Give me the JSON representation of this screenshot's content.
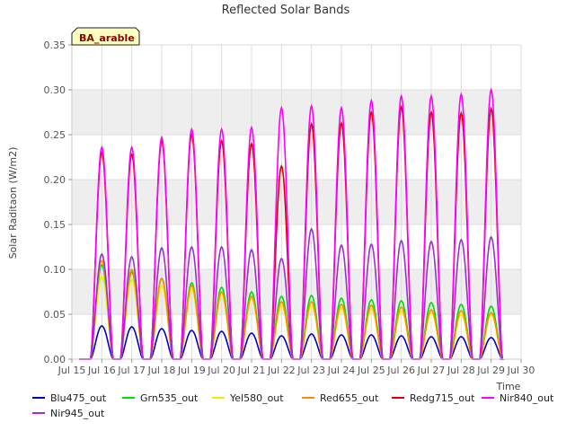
{
  "chart_data": {
    "type": "line",
    "title": "Reflected Solar Bands",
    "site_badge": "BA_arable",
    "xlabel": "Time",
    "ylabel": "Solar Raditaon (W/m2)",
    "ylim": [
      0,
      0.35
    ],
    "y_ticks": [
      "0.00",
      "0.05",
      "0.10",
      "0.15",
      "0.20",
      "0.25",
      "0.30",
      "0.35"
    ],
    "xlim": [
      15,
      30
    ],
    "x_ticks": [
      "Jul 15",
      "Jul 16",
      "Jul 17",
      "Jul 18",
      "Jul 19",
      "Jul 20",
      "Jul 21",
      "Jul 22",
      "Jul 23",
      "Jul 24",
      "Jul 25",
      "Jul 26",
      "Jul 27",
      "Jul 28",
      "Jul 29",
      "Jul 30"
    ],
    "grid": true,
    "legend_position": "bottom",
    "day_numbers": [
      16,
      17,
      18,
      19,
      20,
      21,
      22,
      23,
      24,
      25,
      26,
      27,
      28,
      29
    ],
    "series": [
      {
        "name": "Blu475_out",
        "color": "#0000cc",
        "daily_peak": [
          0.037,
          0.036,
          0.034,
          0.032,
          0.031,
          0.029,
          0.026,
          0.028,
          0.027,
          0.027,
          0.026,
          0.025,
          0.025,
          0.024
        ]
      },
      {
        "name": "Grn535_out",
        "color": "#00dd00",
        "daily_peak": [
          0.105,
          0.097,
          0.09,
          0.085,
          0.08,
          0.075,
          0.07,
          0.071,
          0.068,
          0.066,
          0.065,
          0.063,
          0.061,
          0.059
        ]
      },
      {
        "name": "Yel580_out",
        "color": "#eeee00",
        "daily_peak": [
          0.092,
          0.089,
          0.082,
          0.078,
          0.072,
          0.068,
          0.06,
          0.06,
          0.057,
          0.056,
          0.054,
          0.052,
          0.05,
          0.05
        ]
      },
      {
        "name": "Red655_out",
        "color": "#ff8c00",
        "daily_peak": [
          0.11,
          0.1,
          0.09,
          0.082,
          0.075,
          0.07,
          0.064,
          0.064,
          0.061,
          0.06,
          0.058,
          0.055,
          0.054,
          0.052
        ]
      },
      {
        "name": "Redg715_out",
        "color": "#dd0000",
        "daily_peak": [
          0.23,
          0.228,
          0.243,
          0.25,
          0.243,
          0.24,
          0.215,
          0.262,
          0.263,
          0.275,
          0.281,
          0.275,
          0.274,
          0.279
        ]
      },
      {
        "name": "Nir840_out",
        "color": "#ff00ff",
        "daily_peak": [
          0.236,
          0.236,
          0.247,
          0.256,
          0.256,
          0.258,
          0.28,
          0.282,
          0.28,
          0.288,
          0.293,
          0.293,
          0.295,
          0.3
        ]
      },
      {
        "name": "Nir945_out",
        "color": "#9b30d0",
        "daily_peak": [
          0.117,
          0.114,
          0.124,
          0.125,
          0.125,
          0.122,
          0.112,
          0.145,
          0.127,
          0.128,
          0.132,
          0.131,
          0.133,
          0.136
        ]
      }
    ]
  }
}
